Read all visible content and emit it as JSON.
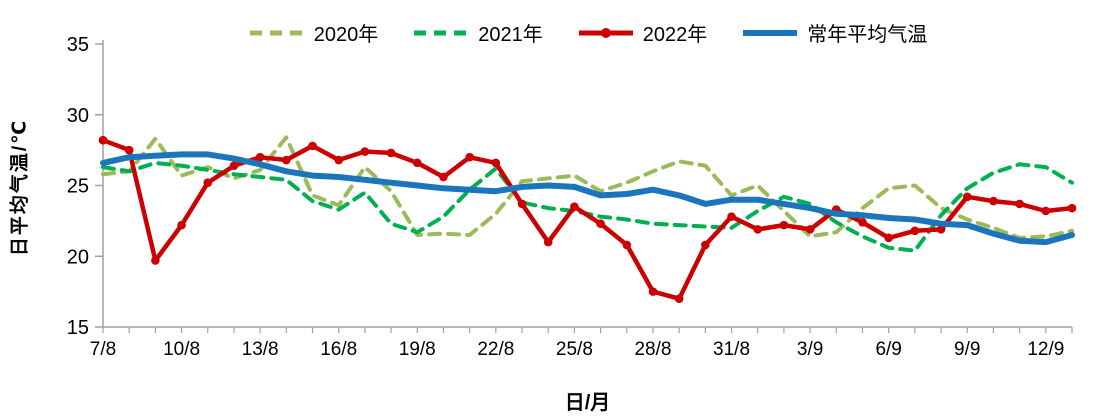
{
  "chart_data": {
    "type": "line",
    "title": "",
    "xlabel": "日/月",
    "ylabel": "日平均气温/℃",
    "ylim": [
      15,
      35
    ],
    "yticks": [
      15,
      20,
      25,
      30,
      35
    ],
    "x_label_every": 3,
    "grid": false,
    "legend_position": "top",
    "axis_color": "#A0A0A0",
    "tick_label_color": "#000000",
    "categories": [
      "7/8",
      "8/8",
      "9/8",
      "10/8",
      "11/8",
      "12/8",
      "13/8",
      "14/8",
      "15/8",
      "16/8",
      "17/8",
      "18/8",
      "19/8",
      "20/8",
      "21/8",
      "22/8",
      "23/8",
      "24/8",
      "25/8",
      "26/8",
      "27/8",
      "28/8",
      "29/8",
      "30/8",
      "31/8",
      "1/9",
      "2/9",
      "3/9",
      "4/9",
      "5/9",
      "6/9",
      "7/9",
      "8/9",
      "9/9",
      "10/9",
      "11/9",
      "12/9",
      "13/9"
    ],
    "series": [
      {
        "name": "2020年",
        "color": "#9BBB59",
        "style": "dashed",
        "values": [
          25.8,
          26.0,
          28.3,
          25.7,
          26.3,
          25.5,
          26.1,
          28.4,
          24.3,
          23.6,
          26.3,
          24.6,
          21.5,
          21.6,
          21.5,
          23.0,
          25.3,
          25.5,
          25.7,
          24.6,
          25.2,
          26.0,
          26.7,
          26.4,
          24.3,
          25.0,
          23.2,
          21.4,
          21.7,
          23.4,
          24.8,
          25.0,
          23.4,
          22.6,
          22.0,
          21.3,
          21.4,
          21.8
        ]
      },
      {
        "name": "2021年",
        "color": "#00B050",
        "style": "dashed",
        "values": [
          26.3,
          26.0,
          26.6,
          26.4,
          26.1,
          25.8,
          25.6,
          25.4,
          23.9,
          23.3,
          24.5,
          22.3,
          21.7,
          22.8,
          24.7,
          26.2,
          23.8,
          23.4,
          23.2,
          22.8,
          22.6,
          22.3,
          22.2,
          22.1,
          22.0,
          23.2,
          24.2,
          23.7,
          22.4,
          21.4,
          20.6,
          20.4,
          22.9,
          24.8,
          25.9,
          26.5,
          26.3,
          25.2
        ]
      },
      {
        "name": "2022年",
        "color": "#CC0000",
        "style": "solid-marker",
        "values": [
          28.2,
          27.5,
          19.7,
          22.2,
          25.2,
          26.4,
          27.0,
          26.8,
          27.8,
          26.8,
          27.4,
          27.3,
          26.6,
          25.6,
          27.0,
          26.6,
          23.7,
          21.0,
          23.5,
          22.3,
          20.8,
          17.5,
          17.0,
          20.8,
          22.8,
          21.9,
          22.2,
          21.9,
          23.3,
          22.4,
          21.3,
          21.8,
          21.9,
          24.2,
          23.9,
          23.7,
          23.2,
          23.4
        ]
      },
      {
        "name": "常年平均气温",
        "color": "#1B75BC",
        "style": "solid-thick",
        "values": [
          26.6,
          27.0,
          27.1,
          27.2,
          27.2,
          26.9,
          26.5,
          26.0,
          25.7,
          25.6,
          25.4,
          25.2,
          25.0,
          24.8,
          24.7,
          24.6,
          24.9,
          25.0,
          24.9,
          24.3,
          24.4,
          24.7,
          24.3,
          23.7,
          24.0,
          24.0,
          23.7,
          23.4,
          23.0,
          22.9,
          22.7,
          22.6,
          22.3,
          22.2,
          21.6,
          21.1,
          21.0,
          21.5
        ]
      }
    ]
  }
}
